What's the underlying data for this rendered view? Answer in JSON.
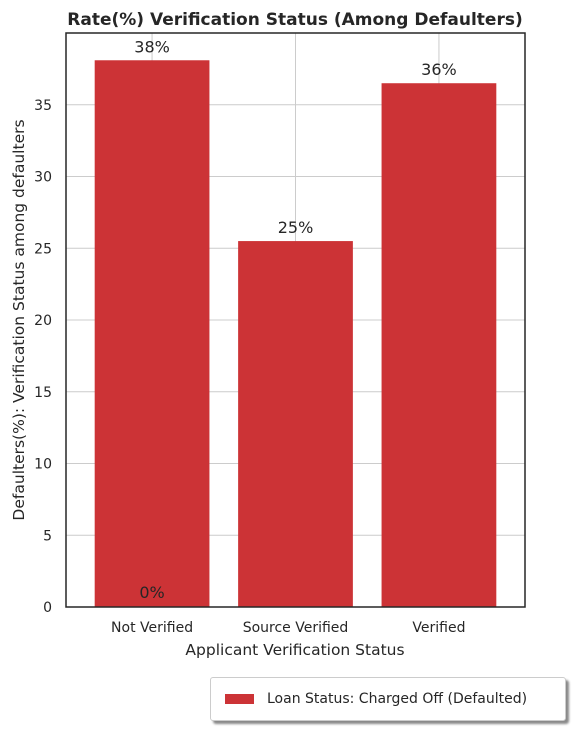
{
  "chart_data": {
    "type": "bar",
    "title": "Rate(%) Verification Status (Among Defaulters)",
    "xlabel": "Applicant Verification Status",
    "ylabel": "Defaulters(%): Verification Status among defaulters",
    "categories": [
      "Not Verified",
      "Source Verified",
      "Verified"
    ],
    "series": [
      {
        "name": "Loan Status: Charged Off (Defaulted)",
        "values": [
          38.1,
          25.5,
          36.5
        ],
        "labels": [
          "38%",
          "25%",
          "36%"
        ]
      }
    ],
    "extra_label": "0%",
    "ylim": [
      0,
      40
    ],
    "yticks": [
      0,
      5,
      10,
      15,
      20,
      25,
      30,
      35
    ],
    "grid": true,
    "legend_position": "bottom-right outside",
    "bar_color": "#cc3336"
  }
}
